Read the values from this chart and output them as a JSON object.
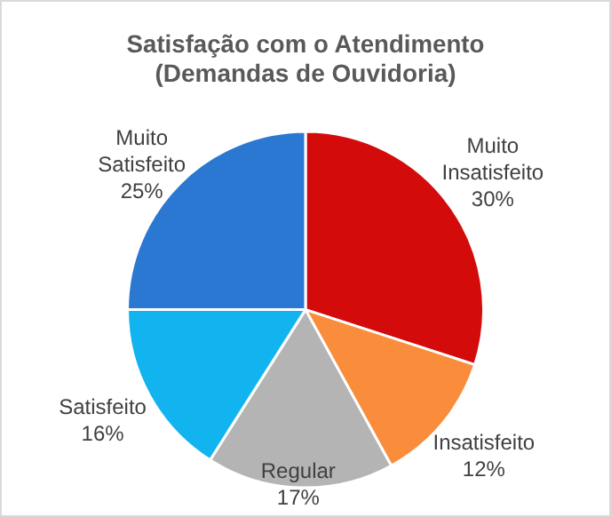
{
  "chart_data": {
    "type": "pie",
    "title": "Satisfação com o Atendimento\n(Demandas de Ouvidoria)",
    "categories": [
      "Muito Insatisfeito",
      "Insatisfeito",
      "Regular",
      "Satisfeito",
      "Muito Satisfeito"
    ],
    "values": [
      30,
      12,
      17,
      16,
      25
    ],
    "value_labels": [
      "30%",
      "12%",
      "17%",
      "16%",
      "25%"
    ],
    "colors": [
      "#d40b0b",
      "#f98d3c",
      "#b4b4b4",
      "#12b4f0",
      "#2a78d2"
    ],
    "legend": false
  }
}
